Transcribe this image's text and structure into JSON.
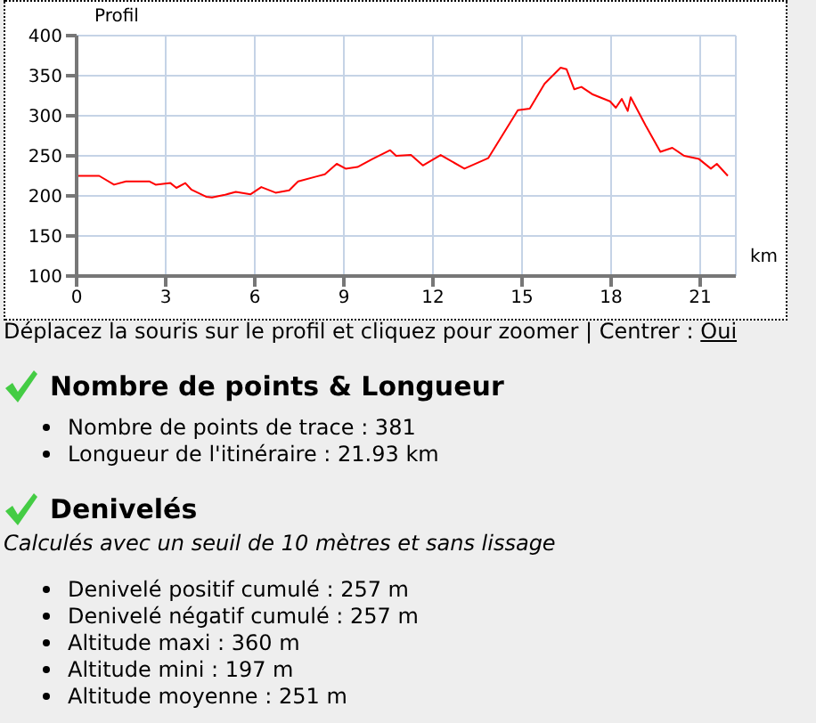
{
  "chart_data": {
    "type": "line",
    "xlabel": "km",
    "ylabel": "Profil",
    "x": [
      0,
      0.76,
      1.26,
      1.66,
      2.46,
      2.66,
      3.16,
      3.36,
      3.66,
      3.86,
      4.36,
      4.56,
      4.96,
      5.36,
      5.86,
      6.22,
      6.7,
      7.16,
      7.46,
      8.06,
      8.36,
      8.76,
      9.06,
      9.46,
      9.96,
      10.56,
      10.76,
      11.26,
      11.66,
      12.26,
      13.06,
      13.86,
      14.86,
      15.26,
      15.76,
      16.3,
      16.5,
      16.76,
      17.0,
      17.36,
      17.96,
      18.16,
      18.36,
      18.56,
      18.66,
      19.16,
      19.66,
      20.06,
      20.46,
      20.96,
      21.36,
      21.56,
      21.93
    ],
    "series": [
      {
        "color": "#ff0000",
        "values": [
          225,
          225,
          214,
          218,
          218,
          214,
          216,
          210,
          216,
          208,
          199,
          198,
          201,
          205,
          202,
          211,
          204,
          207,
          218,
          224,
          227,
          240,
          234,
          236,
          246,
          257,
          250,
          251,
          238,
          251,
          234,
          247,
          307,
          309,
          340,
          360,
          358,
          333,
          336,
          327,
          318,
          310,
          321,
          306,
          323,
          288,
          255,
          260,
          250,
          246,
          234,
          240,
          225
        ]
      }
    ],
    "xlim": [
      0,
      22.2
    ],
    "ylim": [
      100,
      400
    ],
    "xticks": [
      0,
      3,
      6,
      9,
      12,
      15,
      18,
      21
    ],
    "yticks": [
      100,
      150,
      200,
      250,
      300,
      350,
      400
    ],
    "grid": true,
    "legend": false,
    "marker": "none",
    "line_style": "solid",
    "annotations": [
      "Déplacez la souris sur le profil et cliquez pour zoomer | Centrer :",
      "Oui",
      "Nombre de points & Longueur",
      "Nombre de points de trace : 381",
      "Longueur de l'itinéraire : 21.93 km",
      "Denivelés",
      "Calculés avec un seuil de 10 mètres et sans lissage",
      "Denivelé positif cumulé : 257 m",
      "Denivelé négatif cumulé : 257 m",
      "Altitude maxi : 360 m",
      "Altitude mini : 197 m",
      "Altitude moyenne : 251 m"
    ]
  }
}
